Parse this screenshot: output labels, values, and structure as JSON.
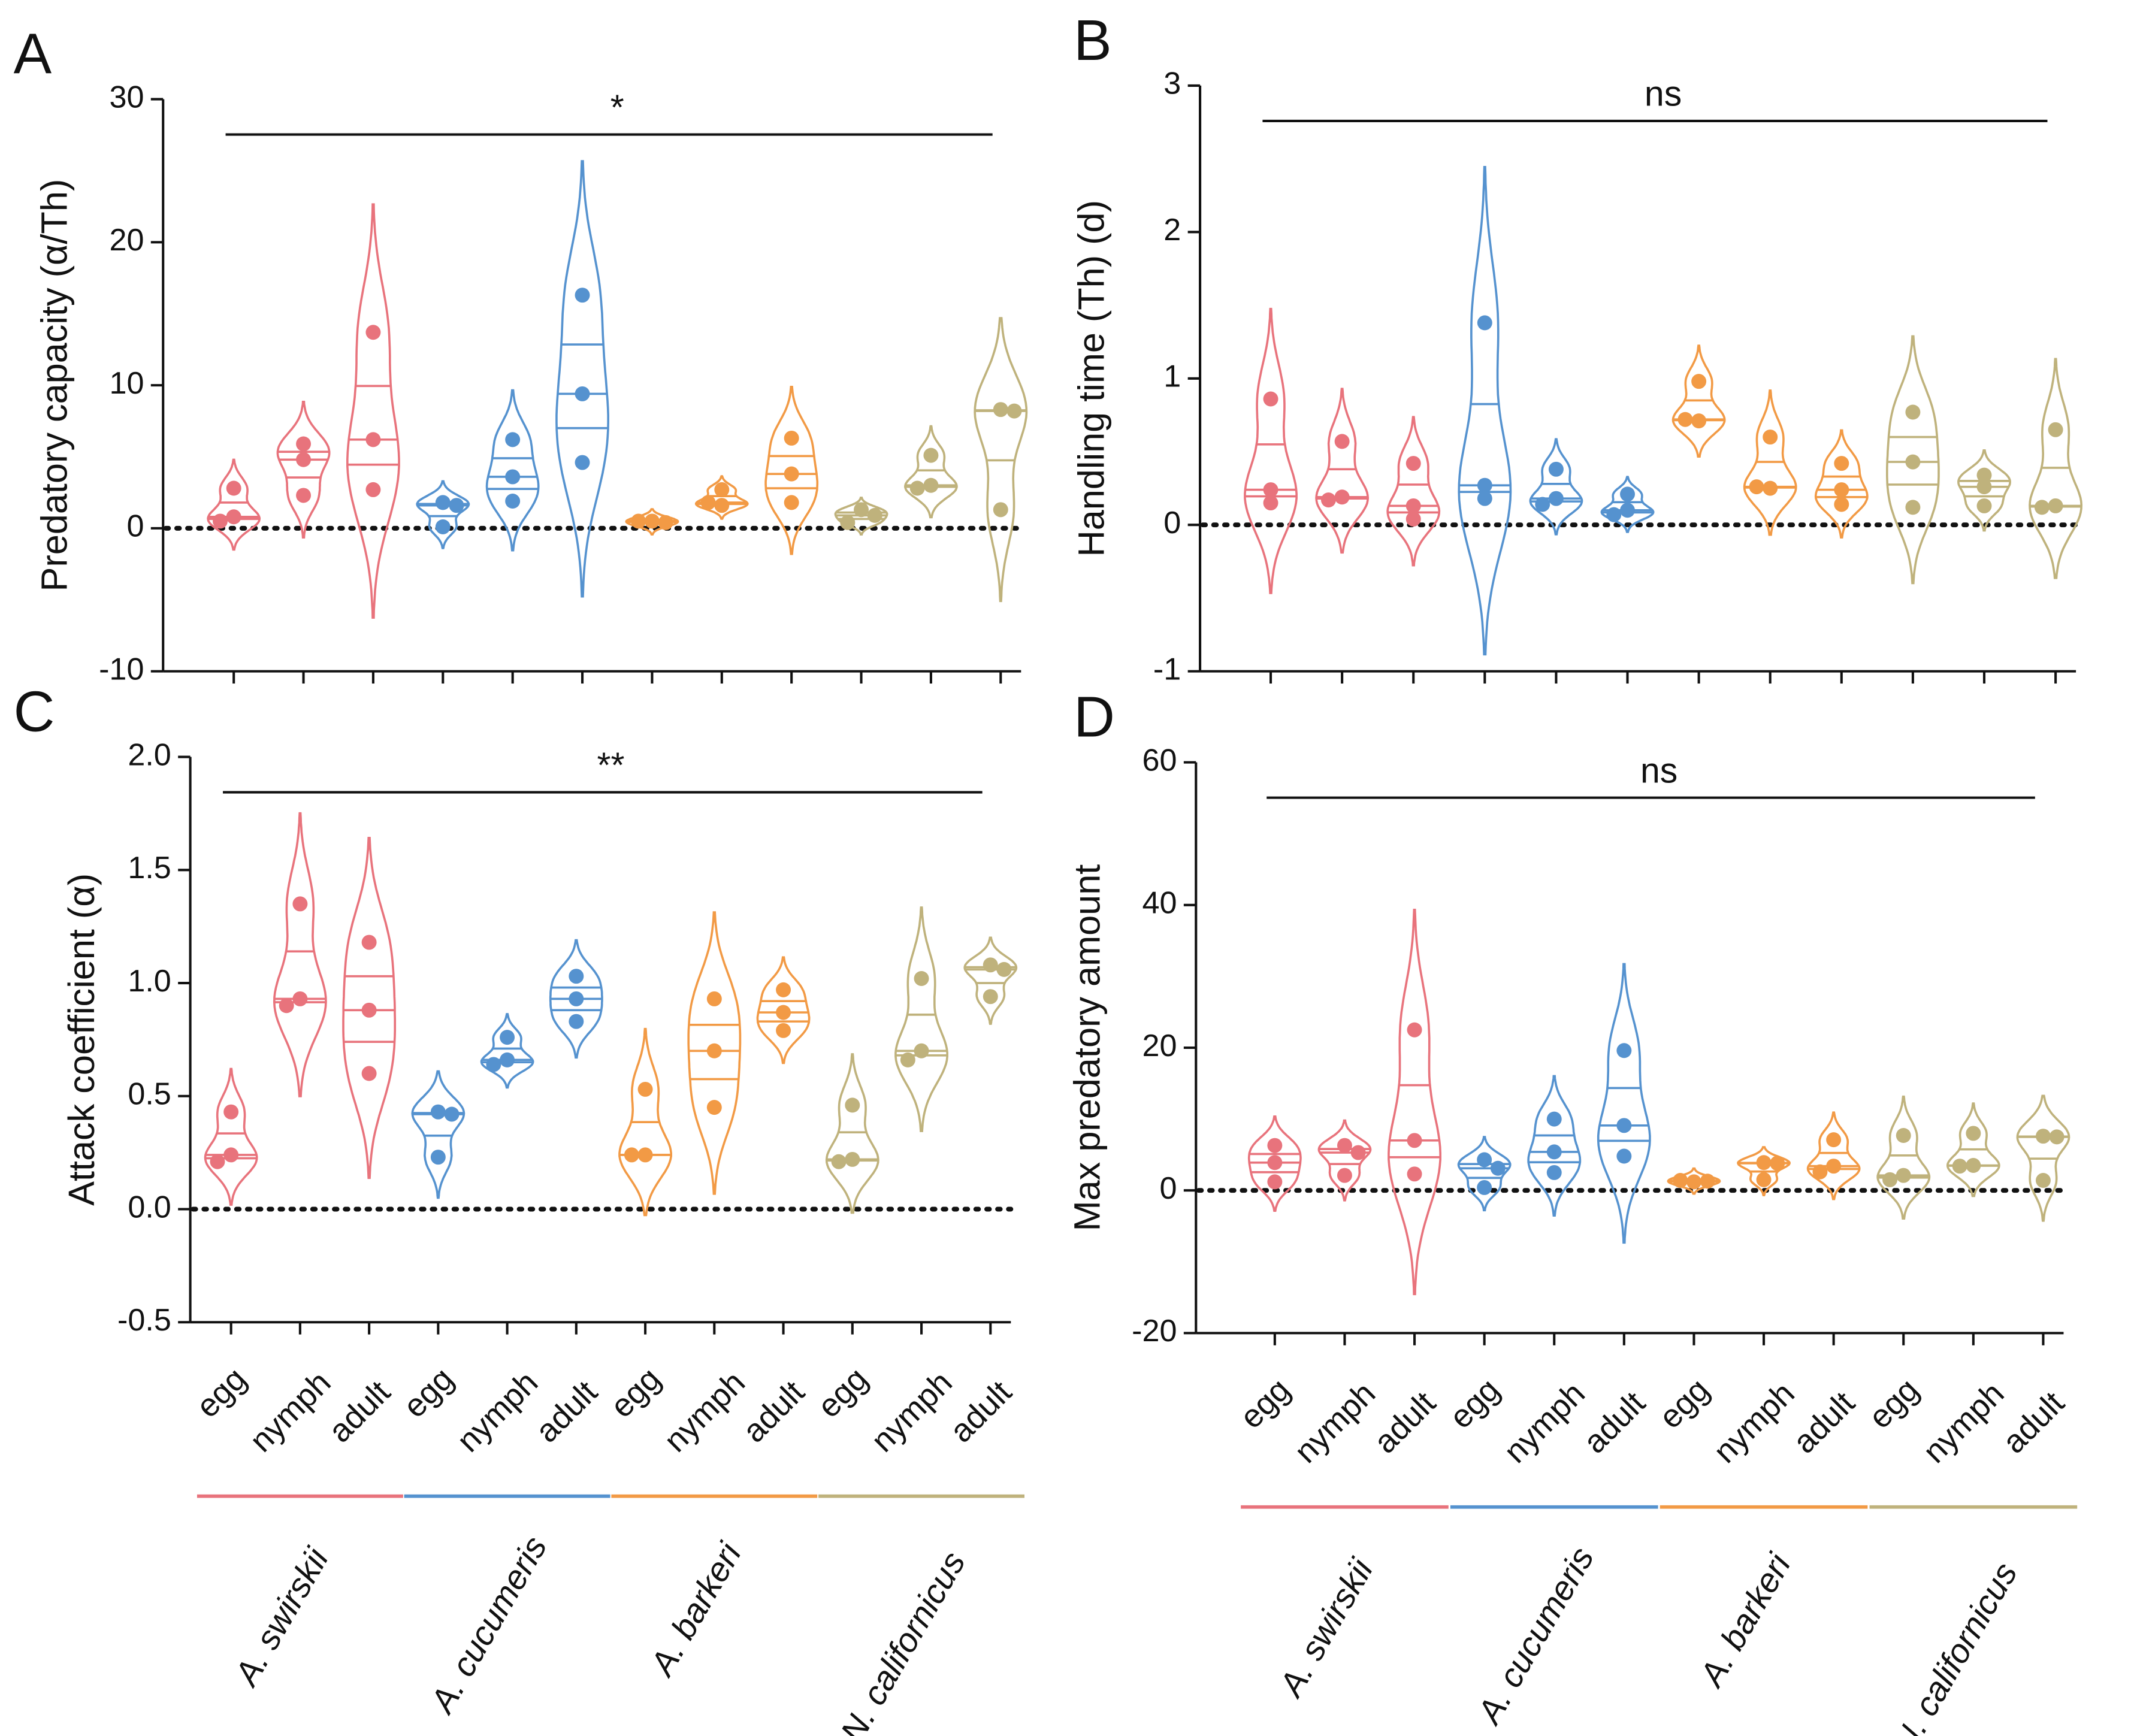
{
  "chart_data": [
    {
      "type": "violin",
      "panel": "A",
      "y_label": "Predatory capacity (α/Th)",
      "annotation": "*",
      "ylim": [
        -10,
        30
      ],
      "yticks": [
        -10,
        0,
        10,
        20,
        30
      ],
      "colors": [
        "#e8737c",
        "#5592cf",
        "#f29a45",
        "#bfb27c"
      ],
      "values": [
        [
          2.8,
          0.8,
          0.5
        ],
        [
          5.9,
          4.8,
          2.3
        ],
        [
          13.7,
          6.2,
          2.7
        ],
        [
          1.8,
          1.6,
          0.1
        ],
        [
          6.2,
          3.6,
          1.9
        ],
        [
          16.3,
          9.4,
          4.6
        ],
        [
          0.5,
          0.4,
          0.5
        ],
        [
          2.7,
          1.6,
          1.8
        ],
        [
          6.3,
          3.8,
          1.8
        ],
        [
          1.3,
          0.9,
          0.4
        ],
        [
          5.1,
          3.0,
          2.8
        ],
        [
          8.3,
          8.2,
          1.3
        ]
      ]
    },
    {
      "type": "violin",
      "panel": "B",
      "y_label": "Handling time (Th) (d)",
      "annotation": "ns",
      "ylim": [
        -1,
        3
      ],
      "yticks": [
        -1,
        0,
        1,
        2,
        3
      ],
      "colors": [
        "#e8737c",
        "#5592cf",
        "#f29a45",
        "#bfb27c"
      ],
      "values": [
        [
          0.86,
          0.24,
          0.15
        ],
        [
          0.57,
          0.19,
          0.17
        ],
        [
          0.42,
          0.13,
          0.04
        ],
        [
          1.38,
          0.27,
          0.18
        ],
        [
          0.38,
          0.18,
          0.14
        ],
        [
          0.21,
          0.1,
          0.07
        ],
        [
          0.98,
          0.71,
          0.72
        ],
        [
          0.6,
          0.25,
          0.26
        ],
        [
          0.42,
          0.24,
          0.14
        ],
        [
          0.77,
          0.43,
          0.12
        ],
        [
          0.34,
          0.26,
          0.13
        ],
        [
          0.65,
          0.13,
          0.12
        ]
      ]
    },
    {
      "type": "violin",
      "panel": "C",
      "y_label": "Attack coefficient (α)",
      "annotation": "**",
      "ylim": [
        -0.5,
        2
      ],
      "yticks": [
        -0.5,
        {
          "value": 0,
          "label": "0.0"
        },
        0.5,
        {
          "value": 1,
          "label": "1.0"
        },
        1.5,
        {
          "value": 2,
          "label": "2.0"
        }
      ],
      "categories": [
        "egg",
        "nymph",
        "adult",
        "egg",
        "nymph",
        "adult",
        "egg",
        "nymph",
        "adult",
        "egg",
        "nymph",
        "adult"
      ],
      "groups": [
        {
          "name": "A. swirskii",
          "color": "#e8737c"
        },
        {
          "name": "A. cucumeris",
          "color": "#5592cf"
        },
        {
          "name": "A. barkeri",
          "color": "#f29a45"
        },
        {
          "name": "N. californicus",
          "color": "#bfb27c"
        }
      ],
      "values": [
        [
          0.43,
          0.24,
          0.21
        ],
        [
          1.35,
          0.93,
          0.9
        ],
        [
          1.18,
          0.88,
          0.6
        ],
        [
          0.43,
          0.42,
          0.23
        ],
        [
          0.76,
          0.66,
          0.64
        ],
        [
          1.03,
          0.93,
          0.83
        ],
        [
          0.53,
          0.24,
          0.24
        ],
        [
          0.93,
          0.7,
          0.45
        ],
        [
          0.97,
          0.87,
          0.79
        ],
        [
          0.46,
          0.22,
          0.21
        ],
        [
          1.02,
          0.7,
          0.66
        ],
        [
          1.08,
          1.06,
          0.94
        ]
      ]
    },
    {
      "type": "violin",
      "panel": "D",
      "y_label": "Max predatory amount",
      "annotation": "ns",
      "ylim": [
        -20,
        60
      ],
      "yticks": [
        -20,
        0,
        20,
        40,
        60
      ],
      "categories": [
        "egg",
        "nymph",
        "adult",
        "egg",
        "nymph",
        "adult",
        "egg",
        "nymph",
        "adult",
        "egg",
        "nymph",
        "adult"
      ],
      "groups": [
        {
          "name": "A. swirskii",
          "color": "#e8737c"
        },
        {
          "name": "A. cucumeris",
          "color": "#5592cf"
        },
        {
          "name": "A. barkeri",
          "color": "#f29a45"
        },
        {
          "name": "N. californicus",
          "color": "#bfb27c"
        }
      ],
      "values": [
        [
          6.3,
          3.9,
          1.2
        ],
        [
          6.3,
          5.3,
          2.1
        ],
        [
          22.5,
          7.0,
          2.3
        ],
        [
          4.3,
          3.1,
          0.4
        ],
        [
          10.0,
          5.4,
          2.5
        ],
        [
          19.6,
          9.1,
          4.8
        ],
        [
          1.2,
          1.3,
          1.4
        ],
        [
          3.9,
          3.8,
          1.5
        ],
        [
          7.1,
          3.4,
          2.6
        ],
        [
          7.7,
          2.1,
          1.5
        ],
        [
          8.0,
          3.5,
          3.4
        ],
        [
          7.6,
          7.5,
          1.4
        ]
      ]
    }
  ]
}
